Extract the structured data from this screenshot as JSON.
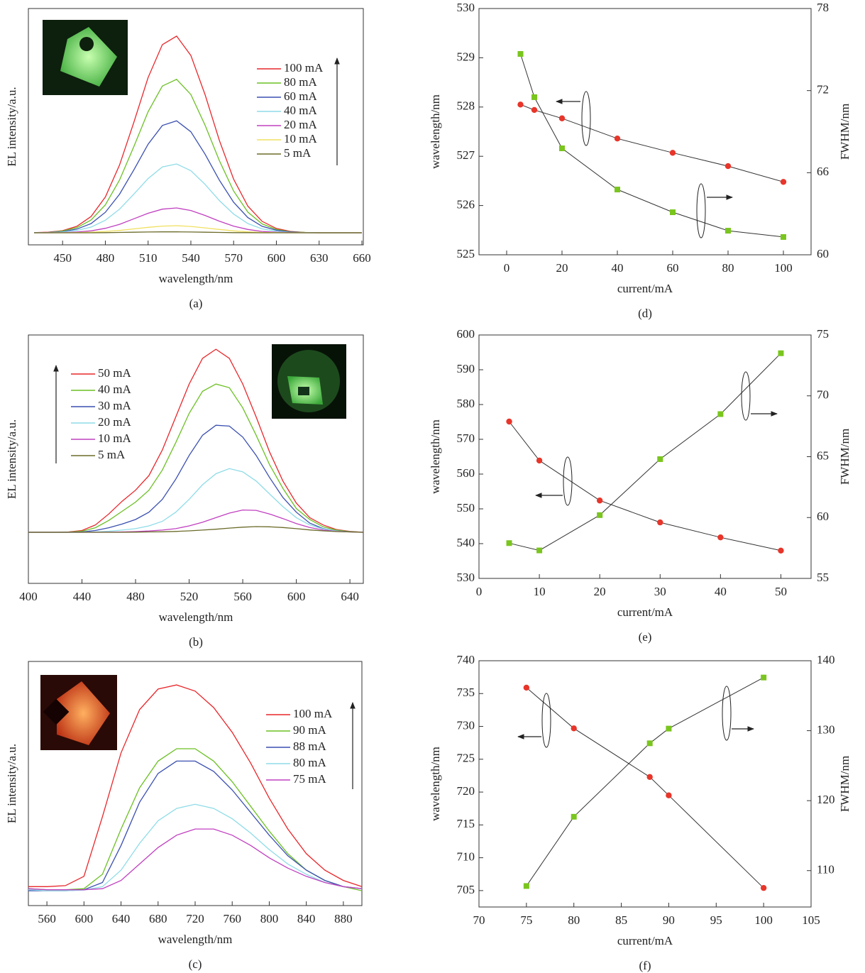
{
  "chart_data": [
    {
      "type": "line",
      "caption": "(a)",
      "xlabel": "wavelength/nm",
      "ylabel": "EL intensity/a.u.",
      "x": [
        430,
        440,
        450,
        460,
        470,
        480,
        490,
        500,
        510,
        520,
        530,
        540,
        550,
        560,
        570,
        580,
        590,
        600,
        610,
        620,
        630,
        640,
        650,
        660
      ],
      "xlim": [
        426,
        661
      ],
      "xticks": [
        450,
        480,
        510,
        540,
        570,
        600,
        630,
        660
      ],
      "ylim": [
        -0.061,
        1.137
      ],
      "legend": "upper right",
      "series": [
        {
          "name": "100 mA",
          "color": "#e8262a",
          "values": [
            0.001,
            0.003,
            0.011,
            0.033,
            0.083,
            0.182,
            0.344,
            0.56,
            0.787,
            0.954,
            0.997,
            0.899,
            0.699,
            0.469,
            0.272,
            0.135,
            0.058,
            0.022,
            0.007,
            0.002,
            0,
            0,
            0,
            0
          ]
        },
        {
          "name": "80 mA",
          "color": "#6cc024",
          "values": [
            0.001,
            0.002,
            0.009,
            0.026,
            0.065,
            0.142,
            0.268,
            0.437,
            0.614,
            0.744,
            0.778,
            0.701,
            0.545,
            0.366,
            0.212,
            0.105,
            0.045,
            0.017,
            0.005,
            0.002,
            0,
            0,
            0,
            0
          ]
        },
        {
          "name": "60 mA",
          "color": "#3a4fb0",
          "values": [
            0.001,
            0.002,
            0.006,
            0.019,
            0.047,
            0.104,
            0.196,
            0.319,
            0.449,
            0.544,
            0.568,
            0.512,
            0.398,
            0.267,
            0.155,
            0.077,
            0.033,
            0.013,
            0.004,
            0.001,
            0,
            0,
            0,
            0
          ]
        },
        {
          "name": "40 mA",
          "color": "#8fdce8",
          "values": [
            0,
            0.001,
            0.004,
            0.012,
            0.029,
            0.064,
            0.12,
            0.196,
            0.275,
            0.334,
            0.349,
            0.315,
            0.245,
            0.164,
            0.095,
            0.047,
            0.02,
            0.008,
            0.002,
            0.001,
            0,
            0,
            0,
            0
          ]
        },
        {
          "name": "20 mA",
          "color": "#c040c0",
          "values": [
            0,
            0,
            0.001,
            0.004,
            0.01,
            0.023,
            0.043,
            0.071,
            0.099,
            0.12,
            0.126,
            0.113,
            0.088,
            0.059,
            0.034,
            0.017,
            0.007,
            0.003,
            0.001,
            0,
            0,
            0,
            0,
            0
          ]
        },
        {
          "name": "10 mA",
          "color": "#f0e060",
          "values": [
            0,
            0,
            0,
            0.001,
            0.003,
            0.007,
            0.012,
            0.02,
            0.028,
            0.034,
            0.036,
            0.032,
            0.025,
            0.017,
            0.01,
            0.005,
            0.002,
            0.001,
            0,
            0,
            0,
            0,
            0,
            0
          ]
        },
        {
          "name": "5 mA",
          "color": "#6b6b2a",
          "values": [
            0,
            0,
            0,
            0,
            0,
            0.001,
            0.002,
            0.003,
            0.004,
            0.005,
            0.005,
            0.004,
            0.003,
            0.002,
            0.001,
            0.001,
            0,
            0,
            0,
            0,
            0,
            0,
            0,
            0
          ]
        }
      ]
    },
    {
      "type": "line",
      "caption": "(b)",
      "xlabel": "wavelength/nm",
      "ylabel": "EL intensity/a.u.",
      "x": [
        400,
        410,
        420,
        430,
        440,
        450,
        460,
        470,
        480,
        490,
        500,
        510,
        520,
        530,
        540,
        550,
        560,
        570,
        580,
        590,
        600,
        610,
        620,
        630,
        640,
        650
      ],
      "xlim": [
        400,
        650
      ],
      "xticks": [
        400,
        440,
        480,
        520,
        560,
        600,
        640
      ],
      "ylim": [
        -0.279,
        1.078
      ],
      "legend": "upper left",
      "series": [
        {
          "name": "50 mA",
          "color": "#e8262a",
          "values": [
            0,
            0,
            0,
            0.002,
            0.01,
            0.04,
            0.1,
            0.17,
            0.23,
            0.31,
            0.45,
            0.63,
            0.81,
            0.95,
            1.0,
            0.95,
            0.81,
            0.63,
            0.44,
            0.28,
            0.16,
            0.08,
            0.04,
            0.015,
            0.005,
            0
          ]
        },
        {
          "name": "40 mA",
          "color": "#6cc024",
          "values": [
            0,
            0,
            0,
            0.001,
            0.006,
            0.025,
            0.065,
            0.115,
            0.165,
            0.23,
            0.34,
            0.49,
            0.65,
            0.77,
            0.81,
            0.79,
            0.68,
            0.53,
            0.37,
            0.24,
            0.13,
            0.07,
            0.03,
            0.012,
            0.004,
            0
          ]
        },
        {
          "name": "30 mA",
          "color": "#3a4fb0",
          "values": [
            0,
            0,
            0,
            0,
            0.002,
            0.01,
            0.025,
            0.045,
            0.07,
            0.11,
            0.18,
            0.29,
            0.42,
            0.53,
            0.585,
            0.58,
            0.52,
            0.42,
            0.3,
            0.19,
            0.11,
            0.05,
            0.02,
            0.008,
            0.003,
            0
          ]
        },
        {
          "name": "20 mA",
          "color": "#8fdce8",
          "values": [
            0,
            0,
            0,
            0,
            0,
            0.002,
            0.006,
            0.012,
            0.02,
            0.035,
            0.06,
            0.11,
            0.18,
            0.26,
            0.32,
            0.348,
            0.33,
            0.28,
            0.21,
            0.14,
            0.08,
            0.04,
            0.018,
            0.007,
            0.002,
            0
          ]
        },
        {
          "name": "10 mA",
          "color": "#c040c0",
          "values": [
            0,
            0,
            0,
            0,
            0,
            0,
            0.001,
            0.002,
            0.004,
            0.007,
            0.012,
            0.02,
            0.035,
            0.055,
            0.08,
            0.105,
            0.122,
            0.12,
            0.1,
            0.075,
            0.048,
            0.026,
            0.012,
            0.005,
            0.002,
            0
          ]
        },
        {
          "name": "5 mA",
          "color": "#6b6b2a",
          "values": [
            0,
            0,
            0,
            0,
            0,
            0,
            0,
            0,
            0.001,
            0.002,
            0.003,
            0.005,
            0.008,
            0.012,
            0.017,
            0.023,
            0.028,
            0.031,
            0.03,
            0.026,
            0.02,
            0.013,
            0.008,
            0.004,
            0.002,
            0
          ]
        }
      ]
    },
    {
      "type": "line",
      "caption": "(c)",
      "xlabel": "wavelength/nm",
      "ylabel": "EL intensity/a.u.",
      "x": [
        540,
        560,
        580,
        600,
        620,
        640,
        660,
        680,
        700,
        720,
        740,
        760,
        780,
        800,
        820,
        840,
        860,
        880,
        900
      ],
      "xlim": [
        540,
        900
      ],
      "xticks": [
        560,
        600,
        640,
        680,
        720,
        760,
        800,
        840,
        880
      ],
      "ylim": [
        -0.072,
        1.114
      ],
      "legend": "upper right",
      "series": [
        {
          "name": "100 mA",
          "color": "#e8262a",
          "values": [
            0.02,
            0.02,
            0.025,
            0.07,
            0.36,
            0.67,
            0.88,
            0.98,
            1.0,
            0.97,
            0.89,
            0.77,
            0.62,
            0.45,
            0.3,
            0.18,
            0.1,
            0.05,
            0.02
          ]
        },
        {
          "name": "90 mA",
          "color": "#6cc024",
          "values": [
            0.01,
            0.005,
            0.005,
            0.01,
            0.08,
            0.3,
            0.5,
            0.63,
            0.69,
            0.69,
            0.63,
            0.53,
            0.41,
            0.29,
            0.18,
            0.1,
            0.05,
            0.02,
            0
          ]
        },
        {
          "name": "88 mA",
          "color": "#3a4fb0",
          "values": [
            0,
            0,
            0,
            0.005,
            0.04,
            0.22,
            0.43,
            0.57,
            0.63,
            0.63,
            0.58,
            0.49,
            0.38,
            0.27,
            0.17,
            0.1,
            0.05,
            0.02,
            0.01
          ]
        },
        {
          "name": "80 mA",
          "color": "#8fdce8",
          "values": [
            0.005,
            0,
            0,
            0.003,
            0.02,
            0.1,
            0.23,
            0.34,
            0.4,
            0.42,
            0.4,
            0.35,
            0.28,
            0.2,
            0.13,
            0.08,
            0.04,
            0.02,
            0.01
          ]
        },
        {
          "name": "75 mA",
          "color": "#c040c0",
          "values": [
            0.01,
            0.005,
            0.005,
            0.005,
            0.01,
            0.05,
            0.13,
            0.21,
            0.27,
            0.3,
            0.3,
            0.27,
            0.22,
            0.16,
            0.11,
            0.07,
            0.04,
            0.02,
            0.01
          ]
        }
      ]
    },
    {
      "type": "scatter",
      "caption": "(d)",
      "xlabel": "current/mA",
      "ylabel": "wavelength/nm",
      "y2label": "FWHM/nm",
      "x": [
        5,
        10,
        20,
        40,
        60,
        80,
        100
      ],
      "xlim": [
        -10,
        110
      ],
      "xticks": [
        0,
        20,
        40,
        60,
        80,
        100
      ],
      "ylim": [
        525,
        530
      ],
      "yticks": [
        525,
        526,
        527,
        528,
        529,
        530
      ],
      "y2lim": [
        60,
        78
      ],
      "y2ticks": [
        60,
        66,
        72,
        78
      ],
      "line_color": "#333",
      "series": [
        {
          "color": "#e8352a",
          "marker": "circle",
          "values": [
            528.05,
            527.94,
            527.77,
            527.36,
            527.07,
            526.8,
            526.48
          ]
        },
        {
          "color": "#7ac51e",
          "marker": "square",
          "axis": "y2",
          "values": [
            74.68,
            71.52,
            67.78,
            64.77,
            63.11,
            61.76,
            61.3
          ]
        }
      ]
    },
    {
      "type": "scatter",
      "caption": "(e)",
      "xlabel": "current/mA",
      "ylabel": "wavelength/nm",
      "y2label": "FWHM/nm",
      "x": [
        5,
        10,
        20,
        30,
        40,
        50
      ],
      "xlim": [
        0,
        55
      ],
      "xticks": [
        0,
        10,
        20,
        30,
        40,
        50
      ],
      "ylim": [
        530,
        600
      ],
      "yticks": [
        530,
        540,
        550,
        560,
        570,
        580,
        590,
        600
      ],
      "y2lim": [
        55,
        75
      ],
      "y2ticks": [
        55,
        60,
        65,
        70,
        75
      ],
      "line_color": "#333",
      "series": [
        {
          "color": "#e8352a",
          "marker": "circle",
          "values": [
            575.1,
            563.9,
            552.4,
            546.1,
            541.8,
            538.0
          ]
        },
        {
          "color": "#7ac51e",
          "marker": "square",
          "axis": "y2",
          "values": [
            57.9,
            57.3,
            60.2,
            64.8,
            68.5,
            73.5
          ]
        }
      ]
    },
    {
      "type": "scatter",
      "caption": "(f)",
      "xlabel": "current/mA",
      "ylabel": "wavelength/nm",
      "y2label": "FWHM/nm",
      "x": [
        75,
        80,
        88,
        90,
        100
      ],
      "xlim": [
        70,
        105
      ],
      "xticks": [
        70,
        75,
        80,
        85,
        90,
        95,
        100,
        105
      ],
      "ylim": [
        702.5,
        740
      ],
      "yticks": [
        705,
        710,
        715,
        720,
        725,
        730,
        735,
        740
      ],
      "y2lim": [
        104.8,
        140
      ],
      "y2ticks": [
        110,
        120,
        130,
        140
      ],
      "line_color": "#333",
      "series": [
        {
          "color": "#e8352a",
          "marker": "circle",
          "values": [
            735.9,
            729.7,
            722.3,
            719.5,
            705.4
          ]
        },
        {
          "color": "#7ac51e",
          "marker": "square",
          "axis": "y2",
          "values": [
            107.8,
            117.7,
            128.2,
            130.3,
            137.6
          ]
        }
      ]
    }
  ]
}
